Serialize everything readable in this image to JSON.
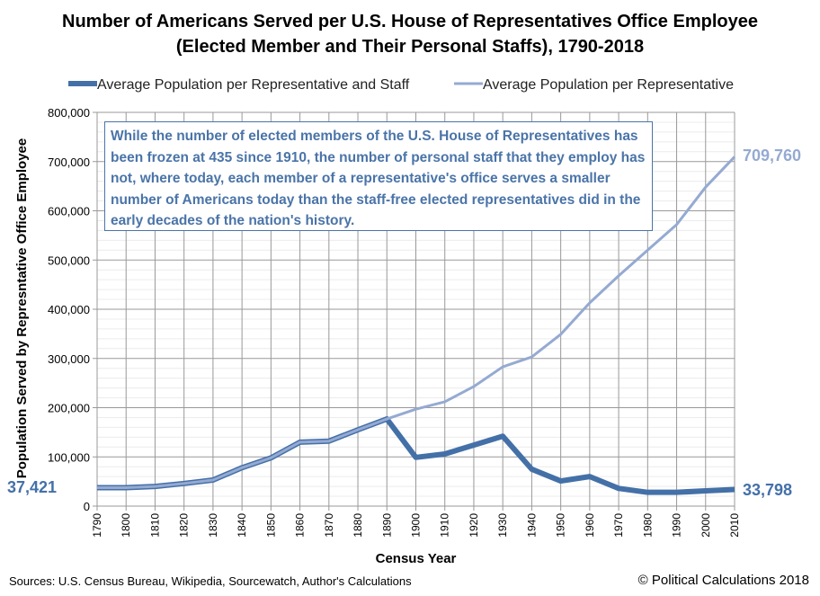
{
  "chart_data": {
    "type": "line",
    "title": "Number of Americans Served per U.S. House of Representatives Office Employee (Elected Member and Their Personal Staffs), 1790-2018",
    "xlabel": "Census Year",
    "ylabel": "Population Served by Represntative Office Employee",
    "ylim": [
      0,
      800000
    ],
    "yticks": [
      "0",
      "100,000",
      "200,000",
      "300,000",
      "400,000",
      "500,000",
      "600,000",
      "700,000",
      "800,000"
    ],
    "x": [
      1790,
      1800,
      1810,
      1820,
      1830,
      1840,
      1850,
      1860,
      1870,
      1880,
      1890,
      1900,
      1910,
      1920,
      1930,
      1940,
      1950,
      1960,
      1970,
      1980,
      1990,
      2000,
      2010
    ],
    "grid": true,
    "legend": "top",
    "series": [
      {
        "name": "Average Population per Representative and Staff",
        "color": "#4470a8",
        "values": [
          37421,
          37500,
          40000,
          46000,
          53000,
          78000,
          98000,
          130000,
          132000,
          155000,
          177000,
          99000,
          106000,
          124000,
          142000,
          75000,
          51000,
          60000,
          36000,
          28000,
          28000,
          31000,
          33798
        ]
      },
      {
        "name": "Average Population per Representative",
        "color": "#95aad2",
        "values": [
          37421,
          37500,
          40000,
          46000,
          53000,
          78000,
          98000,
          130000,
          132000,
          155000,
          177000,
          197000,
          212000,
          243000,
          283000,
          303000,
          349000,
          413000,
          468000,
          520000,
          572000,
          648000,
          709760
        ]
      }
    ],
    "annotations": {
      "note": "While the number of elected members of the U.S. House of Representatives has been frozen at 435 since 1910, the number of personal staff that they employ has not, where today, each member of a representative's office serves a smaller number of Americans today than the staff-free elected representatives did in the early decades of the nation's history.",
      "start_label": "37,421",
      "end_label_rep": "709,760",
      "end_label_staff": "33,798"
    }
  },
  "footer": {
    "sources": "Sources: U.S. Census Bureau, Wikipedia, Sourcewatch, Author's Calculations",
    "copyright": "© Political Calculations 2018"
  }
}
